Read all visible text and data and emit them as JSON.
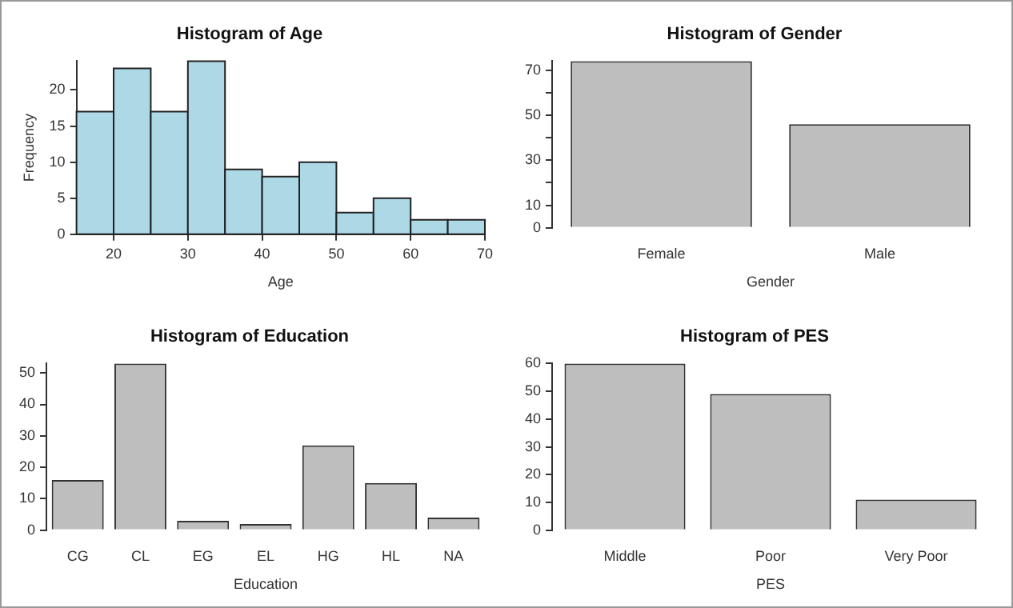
{
  "chart_data": [
    {
      "type": "histogram",
      "title": "Histogram of Age",
      "xlabel": "Age",
      "ylabel": "Frequency",
      "bins": [
        15,
        20,
        25,
        30,
        35,
        40,
        45,
        50,
        55,
        60,
        65,
        70
      ],
      "values": [
        17,
        23,
        17,
        24,
        9,
        8,
        10,
        3,
        5,
        2,
        2
      ],
      "color": "#add8e6",
      "xlim": [
        15,
        70
      ],
      "xticks": [
        20,
        30,
        40,
        50,
        60,
        70
      ],
      "ylim": [
        0,
        24
      ],
      "yticks": [
        0,
        5,
        10,
        15,
        20
      ],
      "grid": false
    },
    {
      "type": "bar",
      "title": "Histogram of Gender",
      "xlabel": "Gender",
      "categories": [
        "Female",
        "Male"
      ],
      "values": [
        74,
        46
      ],
      "color": "#bebebe",
      "ylim": [
        0,
        74
      ],
      "yticks": [
        0,
        10,
        {
          "value": 20,
          "label": null
        },
        30,
        {
          "value": 40,
          "label": null
        },
        50,
        {
          "value": 60,
          "label": null
        },
        70
      ],
      "grid": false
    },
    {
      "type": "bar",
      "title": "Histogram of Education",
      "xlabel": "Education",
      "categories": [
        "CG",
        "CL",
        "EG",
        "EL",
        "HG",
        "HL",
        "NA"
      ],
      "values": [
        16,
        53,
        3,
        2,
        27,
        15,
        4
      ],
      "color": "#bebebe",
      "ylim": [
        0,
        53
      ],
      "yticks": [
        0,
        10,
        20,
        30,
        40,
        50
      ],
      "grid": false
    },
    {
      "type": "bar",
      "title": "Histogram of PES",
      "xlabel": "PES",
      "categories": [
        "Middle",
        "Poor",
        "Very Poor"
      ],
      "values": [
        60,
        49,
        11
      ],
      "color": "#bebebe",
      "ylim": [
        0,
        60
      ],
      "yticks": [
        0,
        10,
        20,
        30,
        40,
        50,
        60
      ],
      "grid": false
    }
  ]
}
